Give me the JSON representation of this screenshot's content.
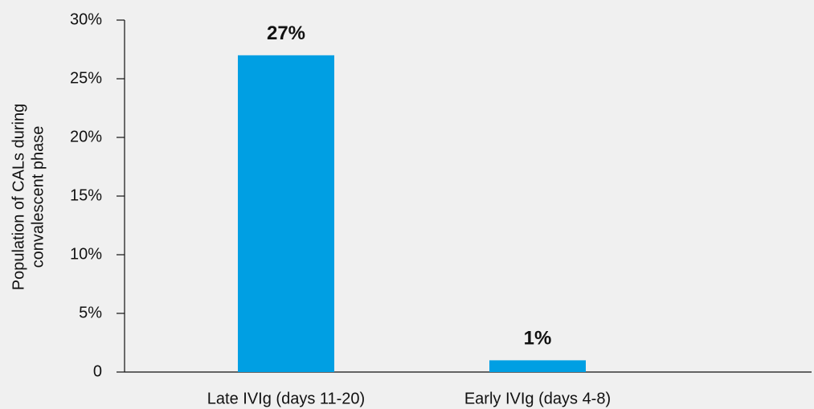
{
  "chart_data": {
    "type": "bar",
    "y_label": [
      "Population of CALs during",
      "convalescent phase"
    ],
    "categories": [
      "Late IVIg (days 11-20)",
      "Early IVIg (days 4-8)"
    ],
    "values": [
      27,
      1
    ],
    "value_labels": [
      "27%",
      "1%"
    ],
    "color": "#009fe3",
    "ylim": [
      0,
      30
    ],
    "yticks": [
      0,
      {
        "value": 5,
        "label": "5%"
      },
      {
        "value": 10,
        "label": "10%"
      },
      {
        "value": 15,
        "label": "15%"
      },
      {
        "value": 20,
        "label": "20%"
      },
      {
        "value": 25,
        "label": "25%"
      },
      {
        "value": 30,
        "label": "30%"
      }
    ],
    "grid": false
  }
}
